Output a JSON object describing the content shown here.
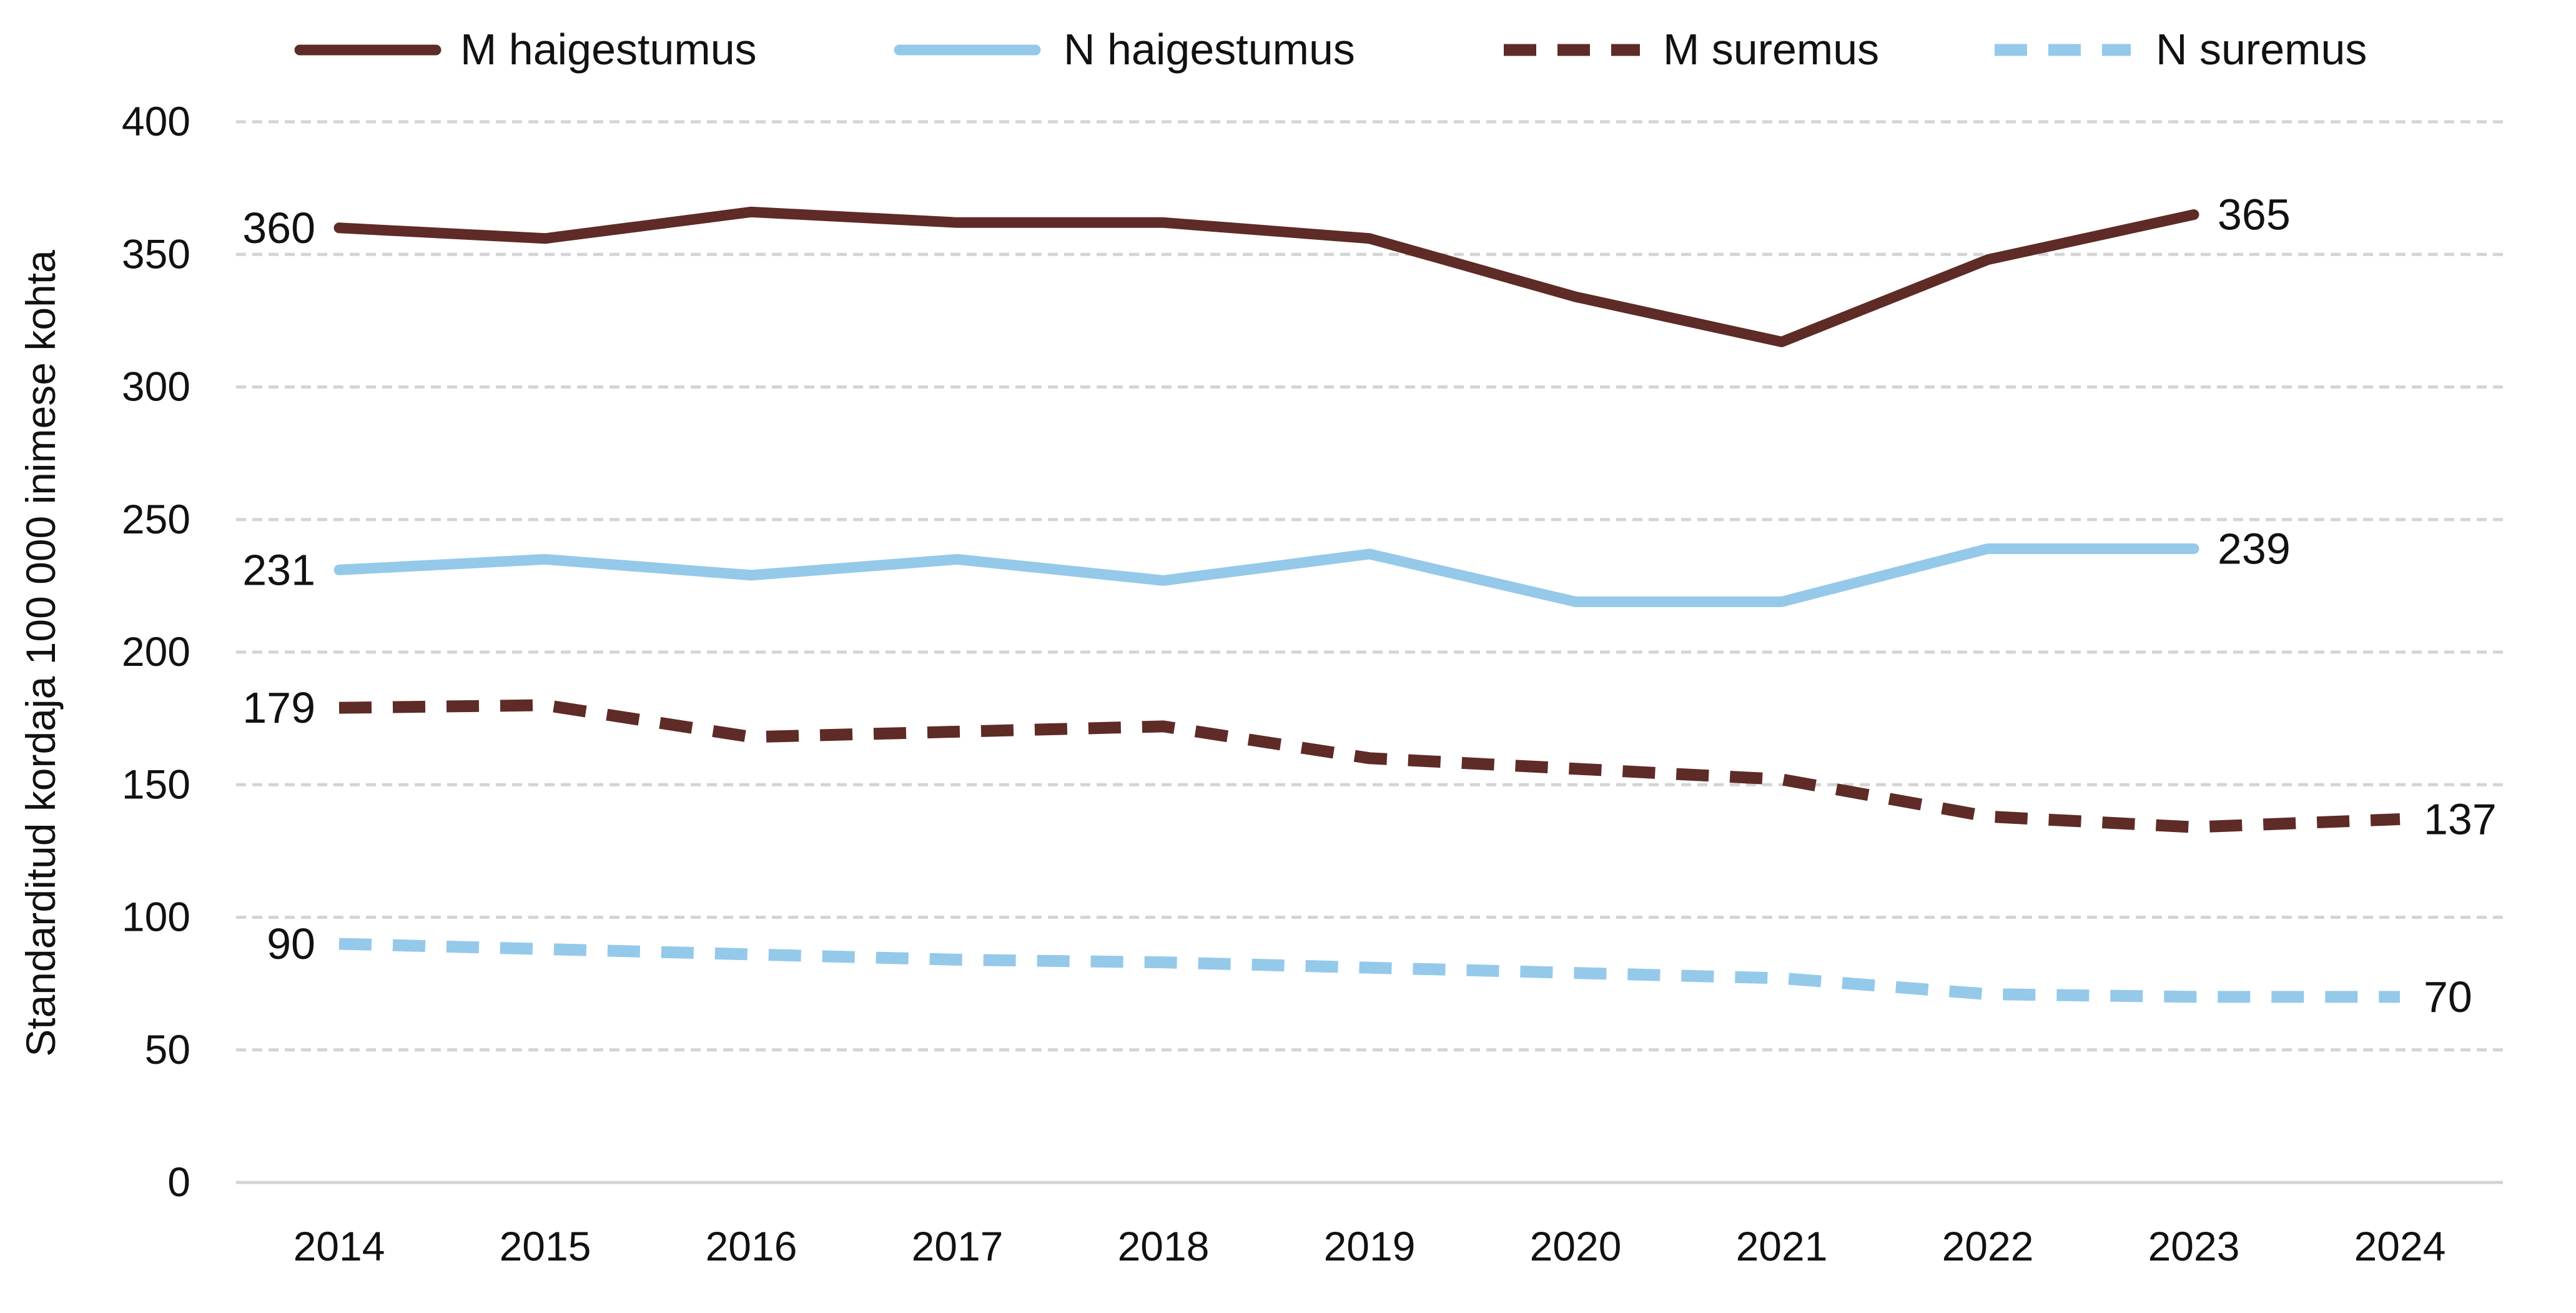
{
  "chart_data": {
    "type": "line",
    "title": "",
    "xlabel": "",
    "ylabel": "Standarditud kordaja 100 000 inimese  kohta",
    "ylim": [
      0,
      400
    ],
    "yticks": [
      0,
      50,
      100,
      150,
      200,
      250,
      300,
      350,
      400
    ],
    "grid": true,
    "legend_position": "top",
    "categories": [
      "2014",
      "2015",
      "2016",
      "2017",
      "2018",
      "2019",
      "2020",
      "2021",
      "2022",
      "2023",
      "2024"
    ],
    "series": [
      {
        "name": "M haigestumus",
        "color": "#5e2b26",
        "dashed": false,
        "values": [
          360,
          356,
          366,
          362,
          362,
          356,
          334,
          317,
          348,
          365,
          null
        ],
        "labels": [
          {
            "index": 0,
            "text": "360",
            "side": "left"
          },
          {
            "index": 9,
            "text": "365",
            "side": "right"
          }
        ]
      },
      {
        "name": "N haigestumus",
        "color": "#94c9ea",
        "dashed": false,
        "values": [
          231,
          235,
          229,
          235,
          227,
          237,
          219,
          219,
          239,
          239,
          null
        ],
        "labels": [
          {
            "index": 0,
            "text": "231",
            "side": "left"
          },
          {
            "index": 9,
            "text": "239",
            "side": "right"
          }
        ]
      },
      {
        "name": "M suremus",
        "color": "#5e2b26",
        "dashed": true,
        "values": [
          179,
          180,
          168,
          170,
          172,
          160,
          156,
          152,
          138,
          134,
          137
        ],
        "labels": [
          {
            "index": 0,
            "text": "179",
            "side": "left"
          },
          {
            "index": 10,
            "text": "137",
            "side": "right"
          }
        ]
      },
      {
        "name": "N suremus",
        "color": "#94c9ea",
        "dashed": true,
        "values": [
          90,
          88,
          86,
          84,
          83,
          81,
          79,
          77,
          71,
          70,
          70
        ],
        "labels": [
          {
            "index": 0,
            "text": "90",
            "side": "left"
          },
          {
            "index": 10,
            "text": "70",
            "side": "right"
          }
        ]
      }
    ]
  }
}
